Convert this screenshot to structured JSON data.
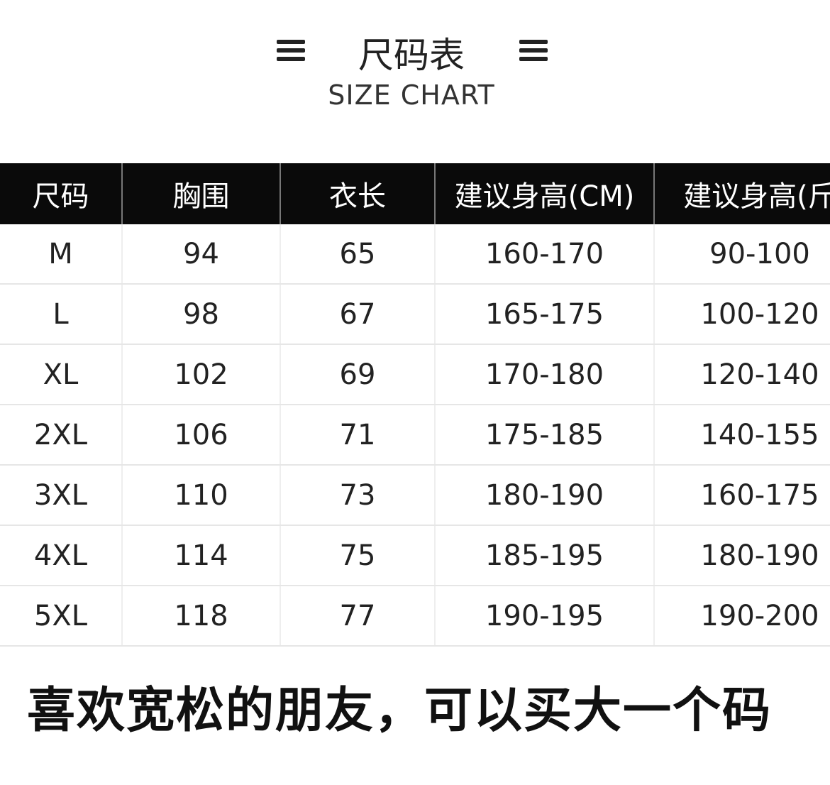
{
  "header": {
    "title": "尺码表",
    "subtitle": "SIZE CHART"
  },
  "table": {
    "columns": [
      "尺码",
      "胸围",
      "衣长",
      "建议身高(CM)",
      "建议身高(斤"
    ],
    "rows": [
      [
        "M",
        "94",
        "65",
        "160-170",
        "90-100"
      ],
      [
        "L",
        "98",
        "67",
        "165-175",
        "100-120"
      ],
      [
        "XL",
        "102",
        "69",
        "170-180",
        "120-140"
      ],
      [
        "2XL",
        "106",
        "71",
        "175-185",
        "140-155"
      ],
      [
        "3XL",
        "110",
        "73",
        "180-190",
        "160-175"
      ],
      [
        "4XL",
        "114",
        "75",
        "185-195",
        "180-190"
      ],
      [
        "5XL",
        "118",
        "77",
        "190-195",
        "190-200"
      ]
    ]
  },
  "footer": {
    "note": "喜欢宽松的朋友，可以买大一个码"
  }
}
